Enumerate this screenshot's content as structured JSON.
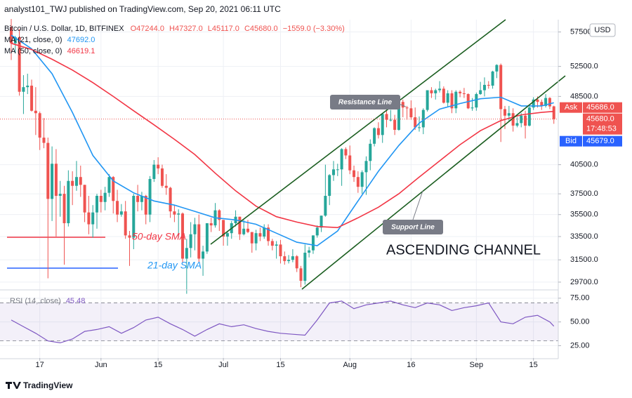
{
  "header": "analyst101_TWJ published on TradingView.com, Sep 20, 2021 06:11 UTC",
  "footer": "TradingView",
  "annotations": [
    "Resistance Line",
    "Support Line",
    "ASCENDING CHANNEL",
    "50-day SMA",
    "21-day SMA"
  ],
  "chart_data": [
    {
      "type": "candlestick",
      "title": "Bitcoin / U.S. Dollar, 1D, BITFINEX",
      "ohlc_text": [
        "O47244.0",
        "H47327.0",
        "L45117.0",
        "C45680.0",
        "−1559.0 (−3.30%)"
      ],
      "currency": "USD",
      "ask_label": "Ask",
      "ask": "45686.0",
      "last": "45680.0",
      "countdown": "17:48:53",
      "bid_label": "Bid",
      "bid": "45679.0",
      "up_color": "#26a69a",
      "down_color": "#ef5350",
      "log_scale": true,
      "grid": true,
      "ylim": [
        29150,
        59400
      ],
      "yticks": [
        {
          "value": 57500,
          "label": "57500.0"
        },
        {
          "value": 52500,
          "label": "52500.0"
        },
        {
          "value": 48500,
          "label": "48500.0"
        },
        {
          "value": 40500,
          "label": "40500.0"
        },
        {
          "value": 37500,
          "label": "37500.0"
        },
        {
          "value": 35500,
          "label": "35500.0"
        },
        {
          "value": 33500,
          "label": "33500.0"
        },
        {
          "value": 31500,
          "label": "31500.0"
        },
        {
          "value": 29700,
          "label": "29700.0"
        }
      ],
      "xticks": [
        {
          "value": "May 17",
          "label": "17"
        },
        {
          "value": "Jun 1",
          "label": "Jun"
        },
        {
          "value": "Jun 15",
          "label": "15"
        },
        {
          "value": "Jul 1",
          "label": "Jul"
        },
        {
          "value": "Jul 15",
          "label": "15"
        },
        {
          "value": "Aug 1",
          "label": "Aug"
        },
        {
          "value": "Aug 16",
          "label": "16"
        },
        {
          "value": "Sep 1",
          "label": "Sep"
        },
        {
          "value": "Sep 15",
          "label": "15"
        }
      ],
      "categories": [
        "May 10",
        "May 11",
        "May 12",
        "May 13",
        "May 14",
        "May 15",
        "May 16",
        "May 17",
        "May 18",
        "May 19",
        "May 20",
        "May 21",
        "May 22",
        "May 23",
        "May 24",
        "May 25",
        "May 26",
        "May 27",
        "May 28",
        "May 29",
        "May 30",
        "May 31",
        "Jun 1",
        "Jun 2",
        "Jun 3",
        "Jun 4",
        "Jun 5",
        "Jun 6",
        "Jun 7",
        "Jun 8",
        "Jun 9",
        "Jun 10",
        "Jun 11",
        "Jun 12",
        "Jun 13",
        "Jun 14",
        "Jun 15",
        "Jun 16",
        "Jun 17",
        "Jun 18",
        "Jun 19",
        "Jun 20",
        "Jun 21",
        "Jun 22",
        "Jun 23",
        "Jun 24",
        "Jun 25",
        "Jun 26",
        "Jun 27",
        "Jun 28",
        "Jun 29",
        "Jun 30",
        "Jul 1",
        "Jul 2",
        "Jul 3",
        "Jul 4",
        "Jul 5",
        "Jul 6",
        "Jul 7",
        "Jul 8",
        "Jul 9",
        "Jul 10",
        "Jul 11",
        "Jul 12",
        "Jul 13",
        "Jul 14",
        "Jul 15",
        "Jul 16",
        "Jul 17",
        "Jul 18",
        "Jul 19",
        "Jul 20",
        "Jul 21",
        "Jul 22",
        "Jul 23",
        "Jul 24",
        "Jul 25",
        "Jul 26",
        "Jul 27",
        "Jul 28",
        "Jul 29",
        "Jul 30",
        "Jul 31",
        "Aug 1",
        "Aug 2",
        "Aug 3",
        "Aug 4",
        "Aug 5",
        "Aug 6",
        "Aug 7",
        "Aug 8",
        "Aug 9",
        "Aug 10",
        "Aug 11",
        "Aug 12",
        "Aug 13",
        "Aug 14",
        "Aug 15",
        "Aug 16",
        "Aug 17",
        "Aug 18",
        "Aug 19",
        "Aug 20",
        "Aug 21",
        "Aug 22",
        "Aug 23",
        "Aug 24",
        "Aug 25",
        "Aug 26",
        "Aug 27",
        "Aug 28",
        "Aug 29",
        "Aug 30",
        "Aug 31",
        "Sep 1",
        "Sep 2",
        "Sep 3",
        "Sep 4",
        "Sep 5",
        "Sep 6",
        "Sep 7",
        "Sep 8",
        "Sep 9",
        "Sep 10",
        "Sep 11",
        "Sep 12",
        "Sep 13",
        "Sep 14",
        "Sep 15",
        "Sep 16",
        "Sep 17",
        "Sep 18",
        "Sep 19",
        "Sep 20"
      ],
      "open": [
        58200,
        55800,
        56700,
        49100,
        49700,
        49900,
        46700,
        46400,
        43500,
        42900,
        37000,
        40600,
        37300,
        37500,
        34700,
        38800,
        38300,
        39200,
        38400,
        35700,
        34600,
        35700,
        37300,
        36700,
        37600,
        39200,
        36800,
        35500,
        35800,
        33600,
        33400,
        37300,
        36700,
        37300,
        35500,
        39000,
        40500,
        40100,
        38300,
        38100,
        35800,
        35500,
        35600,
        31600,
        32500,
        33700,
        34600,
        31600,
        32200,
        34700,
        34500,
        35900,
        35000,
        33500,
        33800,
        34700,
        35300,
        33700,
        34200,
        33900,
        32900,
        33800,
        33500,
        34300,
        33100,
        32700,
        32800,
        31800,
        31400,
        31500,
        31800,
        30800,
        29800,
        32100,
        32300,
        33600,
        34300,
        35400,
        37300,
        39400,
        40000,
        40000,
        42200,
        41500,
        39900,
        39200,
        38200,
        39700,
        40900,
        42800,
        44600,
        43800,
        46300,
        45600,
        45600,
        44400,
        47800,
        47100,
        47000,
        45900,
        44700,
        44700,
        46800,
        49300,
        48900,
        49300,
        49500,
        47700,
        48900,
        47000,
        49100,
        48900,
        48800,
        47000,
        47100,
        48800,
        49300,
        50000,
        49900,
        51800,
        52700,
        46900,
        46100,
        46400,
        44900,
        45200,
        46100,
        44900,
        47100,
        48100,
        47800,
        47300,
        48300,
        47244
      ],
      "high": [
        59500,
        56900,
        58000,
        51300,
        51500,
        50700,
        49700,
        46600,
        45800,
        43500,
        42500,
        42200,
        38800,
        38300,
        39900,
        39800,
        40900,
        40400,
        38400,
        37300,
        36400,
        37500,
        37900,
        38200,
        39500,
        39300,
        37900,
        36500,
        36800,
        34000,
        37500,
        38400,
        37700,
        37400,
        39300,
        41000,
        41300,
        40500,
        39500,
        38200,
        36400,
        36000,
        35700,
        33300,
        34800,
        35200,
        35500,
        32700,
        34700,
        35200,
        36600,
        36000,
        35000,
        33900,
        34900,
        35900,
        35300,
        35000,
        35000,
        33900,
        34100,
        34300,
        34600,
        34600,
        33300,
        33100,
        33200,
        32200,
        31900,
        32400,
        31900,
        31000,
        32800,
        32600,
        33600,
        34500,
        35400,
        40500,
        39500,
        40900,
        40600,
        42300,
        42400,
        42600,
        40400,
        39800,
        39900,
        41400,
        43300,
        44700,
        45300,
        46400,
        46700,
        46800,
        46200,
        47900,
        48100,
        47300,
        48000,
        47100,
        46000,
        47000,
        49300,
        49700,
        49500,
        50500,
        49800,
        49300,
        49300,
        49300,
        49300,
        49600,
        48900,
        48300,
        49000,
        50400,
        51000,
        50500,
        51900,
        52800,
        52900,
        47300,
        47300,
        47000,
        45900,
        46400,
        46700,
        47200,
        48400,
        48500,
        48100,
        48800,
        48400,
        47327
      ],
      "low": [
        53400,
        54400,
        48600,
        46300,
        48800,
        46600,
        43800,
        42100,
        42300,
        30000,
        34900,
        33500,
        35300,
        31100,
        34400,
        36400,
        37800,
        37200,
        34800,
        33700,
        33400,
        34200,
        35700,
        35900,
        37200,
        35600,
        34800,
        35300,
        33300,
        31000,
        32400,
        35800,
        35900,
        34600,
        34800,
        38700,
        39500,
        38100,
        37400,
        35200,
        34800,
        33400,
        31300,
        28800,
        31700,
        32300,
        31300,
        30200,
        32000,
        33900,
        34300,
        34000,
        32700,
        32700,
        33300,
        34400,
        33200,
        33600,
        33800,
        32100,
        32300,
        33100,
        33300,
        32700,
        32300,
        31600,
        31200,
        31100,
        31200,
        31300,
        30500,
        29300,
        29500,
        31700,
        32000,
        33400,
        33900,
        35300,
        36400,
        38800,
        39300,
        38300,
        41100,
        39500,
        38700,
        37600,
        37500,
        37400,
        39900,
        42500,
        43400,
        42900,
        44700,
        45400,
        43800,
        44300,
        45900,
        45600,
        45600,
        44400,
        44200,
        43900,
        46600,
        48300,
        48100,
        49000,
        47600,
        47200,
        46400,
        46400,
        48400,
        48300,
        46900,
        46700,
        46700,
        48700,
        48500,
        49500,
        49500,
        50900,
        43000,
        44500,
        45500,
        44200,
        44700,
        44700,
        43400,
        44800,
        46800,
        47100,
        46800,
        47100,
        46900,
        45117
      ],
      "close": [
        55800,
        56700,
        49100,
        49700,
        49900,
        46700,
        46400,
        43500,
        42900,
        37000,
        40600,
        37300,
        37500,
        34700,
        38800,
        38300,
        39200,
        38400,
        35700,
        34600,
        35700,
        37300,
        36700,
        37600,
        39200,
        36800,
        35500,
        35800,
        33600,
        33400,
        37300,
        36700,
        37300,
        35500,
        39000,
        40500,
        40100,
        38300,
        38100,
        35800,
        35500,
        35600,
        31600,
        32500,
        33700,
        34600,
        31600,
        32200,
        34700,
        34500,
        35900,
        35000,
        33500,
        33800,
        34700,
        35300,
        33700,
        34200,
        33900,
        32900,
        33800,
        33500,
        34300,
        33100,
        32700,
        32800,
        31800,
        31400,
        31500,
        31800,
        30800,
        29800,
        32100,
        32300,
        33600,
        34300,
        35400,
        37300,
        39400,
        40000,
        40000,
        42200,
        41500,
        39900,
        39200,
        38200,
        39700,
        40900,
        42800,
        44600,
        43800,
        46300,
        45600,
        45600,
        44400,
        47800,
        47100,
        47000,
        45900,
        44700,
        44700,
        46800,
        49300,
        48900,
        49300,
        49500,
        47700,
        48900,
        47000,
        49100,
        48900,
        48800,
        47000,
        47100,
        48800,
        49300,
        50000,
        49900,
        51800,
        52700,
        46900,
        46100,
        46400,
        44900,
        45200,
        46100,
        44900,
        47100,
        48100,
        47800,
        47300,
        48300,
        47240,
        45680
      ],
      "overlays": [
        {
          "name": "MA (21, close, 0)",
          "legend_value": "47692.0",
          "color": "#2196f3",
          "x": [
            "May 10",
            "May 15",
            "May 20",
            "May 25",
            "May 30",
            "Jun 4",
            "Jun 9",
            "Jun 14",
            "Jun 19",
            "Jun 24",
            "Jun 29",
            "Jul 4",
            "Jul 9",
            "Jul 14",
            "Jul 19",
            "Jul 24",
            "Jul 29",
            "Aug 3",
            "Aug 8",
            "Aug 13",
            "Aug 18",
            "Aug 23",
            "Aug 28",
            "Sep 2",
            "Sep 7",
            "Sep 12",
            "Sep 17",
            "Sep 20"
          ],
          "values": [
            57000,
            55000,
            51500,
            46500,
            41500,
            38800,
            37600,
            36800,
            36400,
            35800,
            35200,
            35000,
            34600,
            33800,
            33000,
            32700,
            34000,
            36800,
            39800,
            42600,
            45200,
            46900,
            47600,
            48200,
            48400,
            47300,
            47300,
            47692
          ]
        },
        {
          "name": "MA (50, close, 0)",
          "legend_value": "46619.1",
          "color": "#f23645",
          "x": [
            "May 10",
            "May 15",
            "May 20",
            "May 25",
            "May 30",
            "Jun 4",
            "Jun 9",
            "Jun 14",
            "Jun 19",
            "Jun 24",
            "Jun 29",
            "Jul 4",
            "Jul 9",
            "Jul 14",
            "Jul 19",
            "Jul 24",
            "Jul 29",
            "Aug 3",
            "Aug 8",
            "Aug 13",
            "Aug 18",
            "Aug 23",
            "Aug 28",
            "Sep 2",
            "Sep 7",
            "Sep 12",
            "Sep 17",
            "Sep 20"
          ],
          "values": [
            55800,
            54900,
            53500,
            52000,
            50300,
            48500,
            46700,
            45000,
            43300,
            41600,
            39600,
            37800,
            36300,
            35300,
            34800,
            34400,
            34300,
            35200,
            36200,
            37500,
            39200,
            40900,
            42700,
            44300,
            45500,
            46200,
            46500,
            46619.1
          ]
        }
      ]
    },
    {
      "type": "line",
      "series": [
        {
          "name": "RSI (14, close)",
          "legend_value": "45.48",
          "color": "#7e57c2",
          "x": [
            "May 10",
            "May 13",
            "May 16",
            "May 19",
            "May 22",
            "May 25",
            "May 28",
            "May 31",
            "Jun 3",
            "Jun 6",
            "Jun 9",
            "Jun 12",
            "Jun 15",
            "Jun 18",
            "Jun 21",
            "Jun 24",
            "Jun 27",
            "Jun 30",
            "Jul 3",
            "Jul 6",
            "Jul 9",
            "Jul 12",
            "Jul 15",
            "Jul 18",
            "Jul 21",
            "Jul 24",
            "Jul 27",
            "Jul 30",
            "Aug 2",
            "Aug 5",
            "Aug 8",
            "Aug 11",
            "Aug 14",
            "Aug 17",
            "Aug 20",
            "Aug 23",
            "Aug 26",
            "Aug 29",
            "Sep 1",
            "Sep 4",
            "Sep 7",
            "Sep 10",
            "Sep 13",
            "Sep 16",
            "Sep 19",
            "Sep 20"
          ],
          "values": [
            52,
            45,
            38,
            30,
            28,
            32,
            40,
            42,
            45,
            38,
            44,
            52,
            55,
            48,
            42,
            35,
            42,
            48,
            45,
            47,
            43,
            40,
            38,
            37,
            36,
            52,
            70,
            72,
            64,
            68,
            70,
            72,
            68,
            65,
            70,
            68,
            62,
            65,
            67,
            70,
            50,
            48,
            55,
            57,
            50,
            45.48
          ]
        }
      ],
      "band": [
        30,
        70
      ],
      "ylim": [
        12,
        83
      ],
      "yticks": [
        {
          "value": 75,
          "label": "75.00"
        },
        {
          "value": 50,
          "label": "50.00"
        },
        {
          "value": 25,
          "label": "25.00"
        }
      ]
    }
  ]
}
